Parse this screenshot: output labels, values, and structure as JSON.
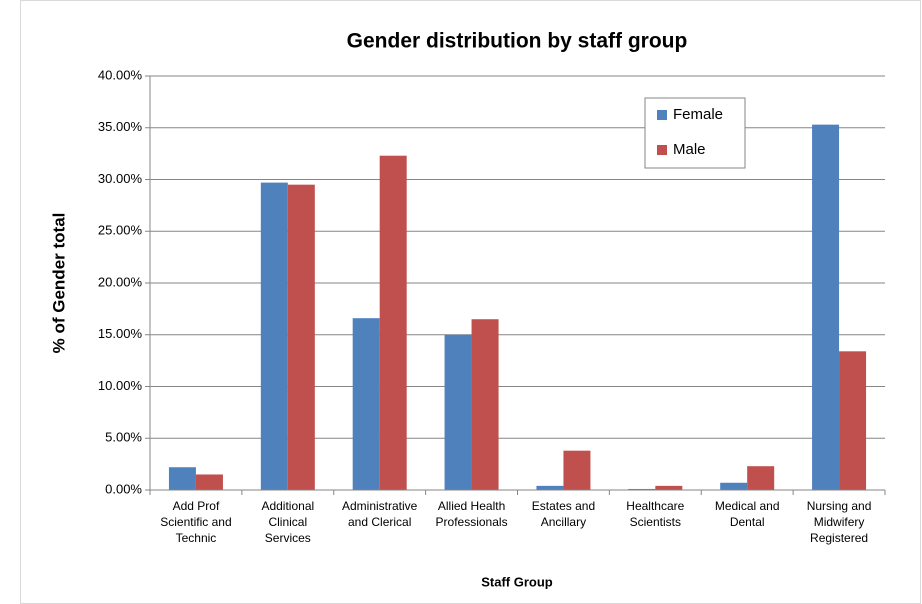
{
  "chart_data": {
    "type": "bar",
    "title": "Gender distribution by staff group",
    "x_label": "Staff Group",
    "y_label": "% of Gender total",
    "categories": [
      "Add Prof Scientific and Technic",
      "Additional Clinical Services",
      "Administrative and Clerical",
      "Allied Health Professionals",
      "Estates and Ancillary",
      "Healthcare Scientists",
      "Medical and Dental",
      "Nursing and Midwifery Registered"
    ],
    "series": [
      {
        "name": "Female",
        "color": "#4f81bd",
        "values": [
          2.2,
          29.7,
          16.6,
          15.0,
          0.4,
          0.1,
          0.7,
          35.3
        ]
      },
      {
        "name": "Male",
        "color": "#c0504d",
        "values": [
          1.5,
          29.5,
          32.3,
          16.5,
          3.8,
          0.4,
          2.3,
          13.4
        ]
      }
    ],
    "ylim": [
      0,
      40
    ],
    "yticks": [
      {
        "value": 0,
        "label": "0.00%"
      },
      {
        "value": 5,
        "label": "5.00%"
      },
      {
        "value": 10,
        "label": "10.00%"
      },
      {
        "value": 15,
        "label": "15.00%"
      },
      {
        "value": 20,
        "label": "20.00%"
      },
      {
        "value": 25,
        "label": "25.00%"
      },
      {
        "value": 30,
        "label": "30.00%"
      },
      {
        "value": 35,
        "label": "35.00%"
      },
      {
        "value": 40,
        "label": "40.00%"
      }
    ],
    "grid": true,
    "legend": "upper right"
  }
}
